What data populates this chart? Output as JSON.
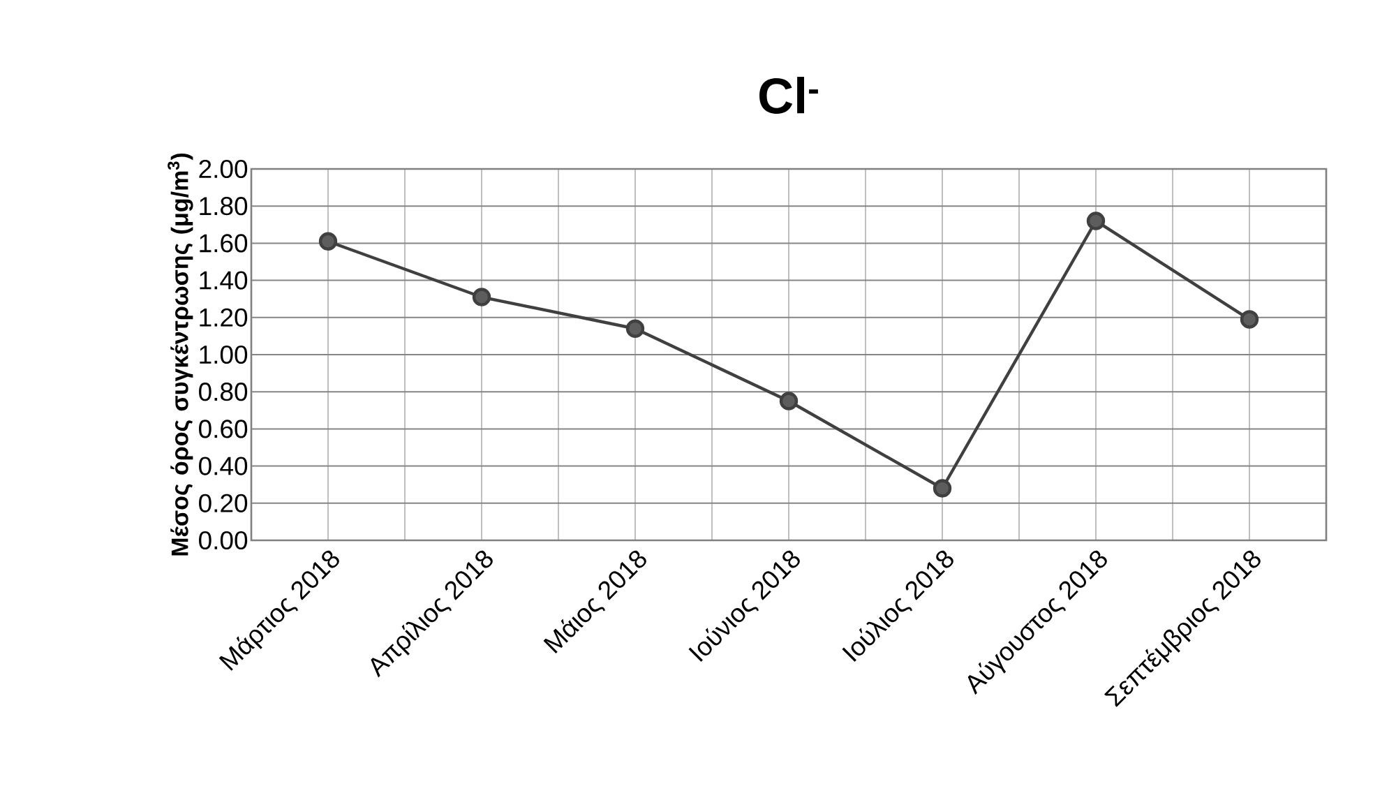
{
  "chart_data": {
    "type": "line",
    "title": "Cl$^{-}$",
    "ylabel": "Μέσος όρος συγκέντρωσης (μg/m$^{3}$)",
    "categories": [
      "Μάρτιος 2018",
      "Απρίλιος 2018",
      "Μάιος 2018",
      "Ιούνιος 2018",
      "Ιούλιος 2018",
      "Αύγουστος 2018",
      "Σεπτέμβριος 2018"
    ],
    "series": [
      {
        "color": "#404040",
        "values": [
          1.61,
          1.31,
          1.14,
          0.75,
          0.28,
          1.72,
          1.19
        ]
      }
    ],
    "ylim": [
      0,
      2
    ],
    "yticks": [
      {
        "value": 0,
        "label": "0.00"
      },
      {
        "value": 0.2,
        "label": "0.20"
      },
      {
        "value": 0.4,
        "label": "0.40"
      },
      {
        "value": 0.6,
        "label": "0.60"
      },
      {
        "value": 0.8,
        "label": "0.80"
      },
      {
        "value": 1.0,
        "label": "1.00"
      },
      {
        "value": 1.2,
        "label": "1.20"
      },
      {
        "value": 1.4,
        "label": "1.40"
      },
      {
        "value": 1.6,
        "label": "1.60"
      },
      {
        "value": 1.8,
        "label": "1.80"
      },
      {
        "value": 2.0,
        "label": "2.00"
      }
    ],
    "grid": true,
    "marker": "circle",
    "line_style": "solid"
  }
}
